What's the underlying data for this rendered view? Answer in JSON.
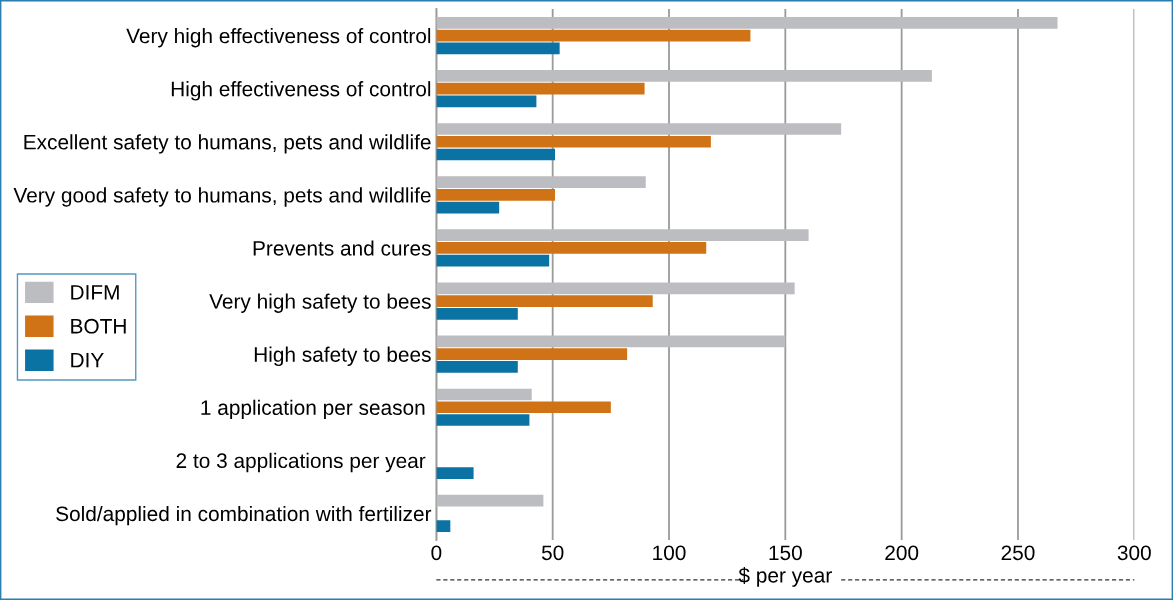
{
  "chart_data": {
    "type": "bar",
    "orientation": "horizontal",
    "xlabel": "$ per year",
    "categories": [
      "Very high effectiveness of control",
      "High effectiveness of control",
      "Excellent safety to humans, pets and wildlife",
      "Very good safety to humans, pets and wildlife",
      "Prevents and cures",
      "Very high safety to bees",
      "High safety to bees",
      "1 application per season ",
      "2 to 3 applications per year ",
      "Sold/applied in combination with fertilizer"
    ],
    "series": [
      {
        "name": "DIFM",
        "color": "#bcbdc1",
        "values": [
          267,
          213,
          174,
          90,
          160,
          154,
          150,
          41,
          null,
          46
        ]
      },
      {
        "name": "BOTH",
        "color": "#d07316",
        "values": [
          135,
          89.5,
          118,
          51,
          116,
          93,
          82,
          75,
          null,
          null
        ]
      },
      {
        "name": "DIY",
        "color": "#0b72a4",
        "values": [
          53,
          43,
          51,
          27,
          48.5,
          35,
          35,
          40,
          16,
          6
        ]
      }
    ],
    "xlim": [
      0,
      300
    ],
    "xticks": [
      0,
      50,
      100,
      150,
      200,
      250,
      300
    ],
    "grid": "x",
    "legend": "left"
  }
}
